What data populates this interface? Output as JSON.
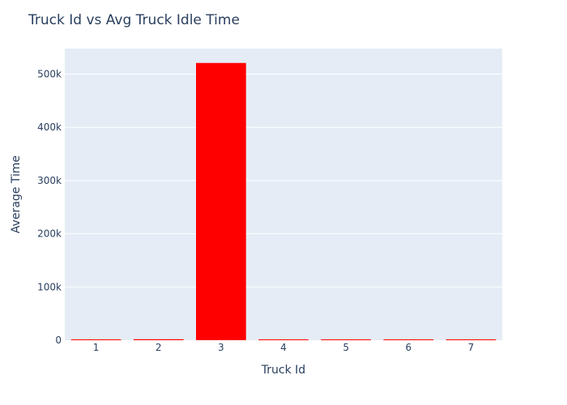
{
  "chart_data": {
    "type": "bar",
    "title": "Truck Id vs Avg Truck Idle Time",
    "xlabel": "Truck Id",
    "ylabel": "Average Time",
    "categories": [
      "1",
      "2",
      "3",
      "4",
      "5",
      "6",
      "7"
    ],
    "values": [
      1200,
      1800,
      521000,
      600,
      300,
      200,
      300
    ],
    "ylim": [
      0,
      548000
    ],
    "yticks": [
      0,
      100000,
      200000,
      300000,
      400000,
      500000
    ],
    "ytick_labels": [
      "0",
      "100k",
      "200k",
      "300k",
      "400k",
      "500k"
    ],
    "grid": true,
    "legend": "none",
    "colors": {
      "bar": "#ff0000",
      "plot_background": "#e5ecf6",
      "gridline": "#ffffff",
      "text": "#2a3f5f"
    }
  }
}
